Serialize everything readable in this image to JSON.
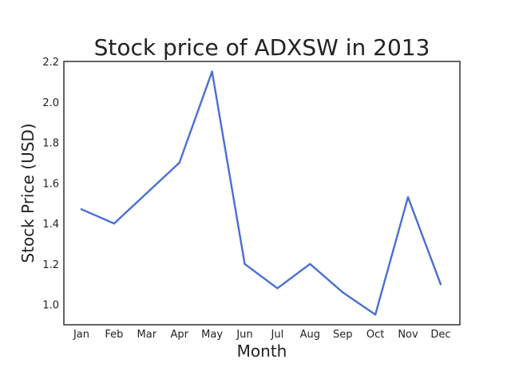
{
  "chart_data": {
    "type": "line",
    "title": "Stock price of ADXSW in 2013",
    "xlabel": "Month",
    "ylabel": "Stock Price (USD)",
    "categories": [
      "Jan",
      "Feb",
      "Mar",
      "Apr",
      "May",
      "Jun",
      "Jul",
      "Aug",
      "Sep",
      "Oct",
      "Nov",
      "Dec"
    ],
    "series": [
      {
        "values": [
          1.47,
          1.4,
          1.55,
          1.7,
          2.15,
          1.2,
          1.08,
          1.2,
          1.06,
          0.95,
          1.53,
          1.1
        ],
        "color": "#4a6fd1"
      }
    ],
    "ylim": [
      0.9,
      2.2
    ],
    "yticks": [
      "1.0",
      "1.2",
      "1.4",
      "1.6",
      "1.8",
      "2.0",
      "2.2"
    ],
    "grid": false,
    "legend": "none"
  }
}
